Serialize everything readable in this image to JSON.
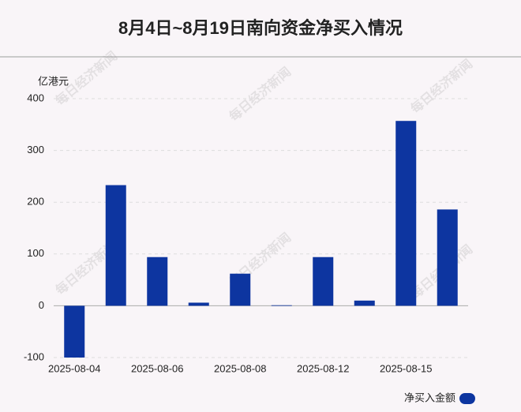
{
  "chart_data": {
    "type": "bar",
    "title": "8月4日~8月19日南向资金净买入情况",
    "y_unit": "亿港元",
    "watermark": "每日经济新闻",
    "categories": [
      "2025-08-04",
      null,
      "2025-08-06",
      null,
      "2025-08-08",
      null,
      "2025-08-12",
      null,
      "2025-08-15",
      null
    ],
    "series": [
      {
        "name": "净买入金额",
        "color": "#0d35a0",
        "values": [
          -100,
          233,
          94,
          6,
          62,
          1,
          94,
          10,
          357,
          186
        ]
      }
    ],
    "ylim": [
      -100,
      400
    ],
    "yticks": [
      -100,
      0,
      100,
      200,
      300,
      400
    ],
    "grid": true,
    "legend": "bottom-right"
  }
}
